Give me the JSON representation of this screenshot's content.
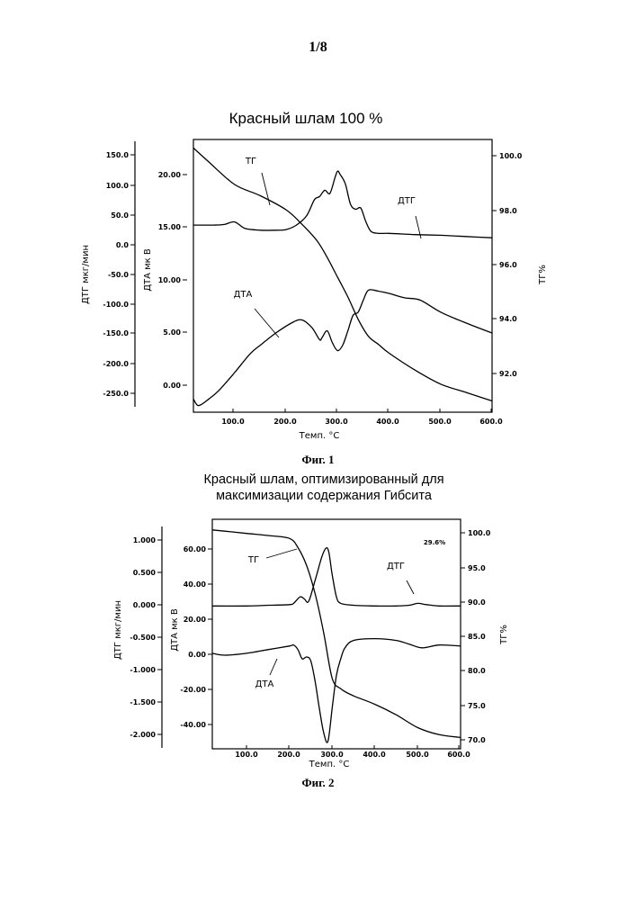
{
  "page": {
    "number": "1/8"
  },
  "chart_data": [
    {
      "type": "line",
      "title": "Красный шлам 100 %",
      "caption": "Фиг. 1",
      "xlabel": "Темп. °С",
      "xlim": [
        20,
        600
      ],
      "x_ticks": [
        "100.0",
        "200.0",
        "300.0",
        "400.0",
        "500.0",
        "600.0"
      ],
      "axes": {
        "dtg": {
          "label": "ДТГ  мкг/мин",
          "ylim": [
            -270,
            160
          ],
          "ticks": [
            "150.0",
            "100.0",
            "50.0",
            "0.0",
            "-50.0",
            "-100.0",
            "-150.0",
            "-200.0",
            "-250.0"
          ]
        },
        "dta": {
          "label": "ДТА мк В",
          "ylim": [
            -1.8,
            23
          ],
          "ticks": [
            "20.00",
            "15.00",
            "10.00",
            "5.00",
            "0.00"
          ]
        },
        "tg": {
          "label": "ТГ%",
          "ylim": [
            90.5,
            100.2
          ],
          "ticks": [
            "100.0",
            "98.0",
            "96.0",
            "94.0",
            "92.0"
          ]
        }
      },
      "series": [
        {
          "name": "ТГ",
          "axis": "tg",
          "x": [
            20,
            50,
            100,
            150,
            200,
            230,
            260,
            280,
            300,
            320,
            340,
            360,
            380,
            400,
            450,
            500,
            550,
            600
          ],
          "values": [
            99.9,
            99.4,
            98.6,
            98.2,
            97.7,
            97.2,
            96.6,
            96.0,
            95.3,
            94.6,
            93.8,
            93.2,
            92.9,
            92.6,
            92.0,
            91.5,
            91.2,
            90.9
          ]
        },
        {
          "name": "ДТГ",
          "axis": "dtg",
          "x": [
            20,
            60,
            80,
            100,
            120,
            150,
            180,
            200,
            220,
            240,
            255,
            265,
            275,
            285,
            295,
            300,
            305,
            315,
            325,
            335,
            345,
            355,
            365,
            380,
            400,
            450,
            500,
            550,
            600
          ],
          "values": [
            25,
            25,
            26,
            30,
            20,
            17,
            17,
            18,
            25,
            40,
            65,
            70,
            80,
            75,
            100,
            110,
            105,
            90,
            58,
            50,
            52,
            30,
            15,
            12,
            12,
            10,
            9,
            7,
            5
          ]
        },
        {
          "name": "ДТА",
          "axis": "dta",
          "x": [
            20,
            30,
            50,
            70,
            100,
            130,
            150,
            180,
            210,
            230,
            250,
            265,
            270,
            280,
            290,
            300,
            310,
            320,
            330,
            340,
            350,
            360,
            380,
            400,
            430,
            460,
            500,
            550,
            600
          ],
          "values": [
            -0.6,
            -1.2,
            -0.6,
            0.2,
            1.8,
            3.5,
            4.3,
            5.4,
            6.3,
            6.6,
            5.9,
            4.8,
            5.0,
            5.6,
            4.5,
            3.8,
            4.3,
            5.6,
            7.0,
            7.3,
            8.4,
            9.3,
            9.2,
            9.0,
            8.6,
            8.4,
            7.3,
            6.3,
            5.4
          ]
        }
      ],
      "annotations": [
        "ТГ",
        "ДТГ",
        "ДТА"
      ]
    },
    {
      "type": "line",
      "title_lines": [
        "Красный шлам, оптимизированный для",
        "максимизации содержания Гибсита"
      ],
      "caption": "Фиг. 2",
      "xlabel": "Темп. °С",
      "xlim": [
        20,
        600
      ],
      "x_ticks": [
        "100.0",
        "200.0",
        "300.0",
        "400.0",
        "500.0",
        "600.0"
      ],
      "axes": {
        "dtg": {
          "label": "ДТГ мкг/мин",
          "ylim": [
            -2.2,
            1.35
          ],
          "ticks": [
            "1.000",
            "0.500",
            "0.000",
            "-0.500",
            "-1.000",
            "-1.500",
            "-2.000"
          ]
        },
        "dta": {
          "label": "ДТА мк В",
          "ylim": [
            -52,
            73
          ],
          "ticks": [
            "60.00",
            "40.00",
            "20.00",
            "0.00",
            "-20.00",
            "-40.00"
          ]
        },
        "tg": {
          "label": "ТГ%",
          "ylim": [
            69,
            101.5
          ],
          "ticks": [
            "100.0",
            "95.0",
            "90.0",
            "85.0",
            "80.0",
            "75.0",
            "70.0"
          ]
        }
      },
      "series": [
        {
          "name": "ТГ",
          "axis": "tg",
          "x": [
            20,
            100,
            150,
            200,
            220,
            240,
            260,
            280,
            300,
            320,
            350,
            400,
            450,
            500,
            550,
            600
          ],
          "values": [
            100.0,
            99.5,
            99.2,
            98.8,
            97.5,
            95.0,
            91.0,
            85.5,
            79.0,
            77.5,
            76.5,
            75.3,
            73.8,
            72.0,
            71.0,
            70.6
          ]
        },
        {
          "name": "ДТГ",
          "axis": "dtg",
          "x": [
            20,
            100,
            150,
            200,
            210,
            225,
            235,
            245,
            260,
            275,
            285,
            292,
            300,
            310,
            320,
            350,
            400,
            450,
            480,
            500,
            520,
            550,
            600
          ],
          "values": [
            0.01,
            0.01,
            0.02,
            0.03,
            0.05,
            0.15,
            0.12,
            0.08,
            0.4,
            0.75,
            0.9,
            0.85,
            0.5,
            0.15,
            0.05,
            0.02,
            0.01,
            0.01,
            0.02,
            0.05,
            0.03,
            0.01,
            0.01
          ]
        },
        {
          "name": "ДТА",
          "axis": "dta",
          "x": [
            20,
            50,
            100,
            150,
            200,
            210,
            220,
            230,
            240,
            250,
            260,
            270,
            280,
            290,
            300,
            310,
            320,
            330,
            350,
            400,
            450,
            480,
            510,
            550,
            600
          ],
          "values": [
            0,
            -1,
            0,
            2,
            4,
            4.5,
            2,
            -3,
            -2,
            -4,
            -15,
            -30,
            -43,
            -48,
            -30,
            -12,
            -3,
            3,
            7,
            8,
            7,
            5,
            3,
            4.5,
            4
          ]
        }
      ],
      "annotations": [
        "ТГ",
        "ДТГ",
        "ДТА",
        "29.6%"
      ]
    }
  ]
}
